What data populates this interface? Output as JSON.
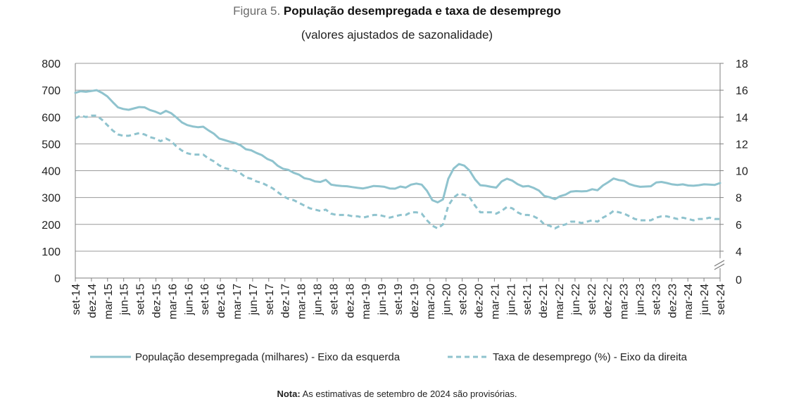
{
  "title": {
    "prefix": "Figura 5.",
    "main": "População desempregada e taxa de desemprego",
    "subtitle": "(valores ajustados de sazonalidade)"
  },
  "note": {
    "label": "Nota:",
    "text": "As estimativas de setembro de 2024 são provisórias."
  },
  "colors": {
    "series": "#8fc3ce",
    "grid": "#9a9a9a",
    "axis": "#7f7f7f"
  },
  "chart_data": {
    "type": "line",
    "title": "População desempregada e taxa de desemprego",
    "x_tick_labels": [
      "set-14",
      "dez-14",
      "mar-15",
      "jun-15",
      "set-15",
      "dez-15",
      "mar-16",
      "jun-16",
      "set-16",
      "dez-16",
      "mar-17",
      "jun-17",
      "set-17",
      "dez-17",
      "mar-18",
      "jun-18",
      "set-18",
      "dez-18",
      "mar-19",
      "jun-19",
      "set-19",
      "dez-19",
      "mar-20",
      "jun-20",
      "set-20",
      "dez-20",
      "mar-21",
      "jun-21",
      "set-21",
      "dez-21",
      "mar-22",
      "jun-22",
      "set-22",
      "dez-22",
      "mar-23",
      "jun-23",
      "set-23",
      "dez-23",
      "mar-24",
      "jun-24",
      "set-24"
    ],
    "y_left": {
      "ticks": [
        0,
        100,
        200,
        300,
        400,
        500,
        600,
        700,
        800
      ],
      "ylim": [
        0,
        800
      ]
    },
    "y_right": {
      "ticks": [
        0,
        4,
        6,
        8,
        10,
        12,
        14,
        16,
        18
      ],
      "axis_break": true,
      "ylim_upper": [
        4,
        18
      ]
    },
    "legend_position": "bottom",
    "series": [
      {
        "name": "População desempregada (milhares) - Eixo da esquerda",
        "style": "solid",
        "axis": "left",
        "values": [
          690,
          696,
          694,
          697,
          700,
          690,
          677,
          656,
          636,
          630,
          627,
          632,
          637,
          636,
          626,
          620,
          612,
          623,
          614,
          598,
          580,
          570,
          565,
          562,
          564,
          550,
          538,
          520,
          514,
          508,
          503,
          495,
          480,
          476,
          466,
          458,
          444,
          436,
          418,
          407,
          403,
          392,
          385,
          372,
          368,
          360,
          358,
          366,
          348,
          345,
          343,
          342,
          339,
          336,
          334,
          338,
          343,
          342,
          340,
          334,
          333,
          341,
          337,
          348,
          352,
          348,
          325,
          290,
          282,
          293,
          370,
          408,
          425,
          419,
          400,
          368,
          346,
          344,
          340,
          337,
          360,
          370,
          363,
          350,
          341,
          343,
          336,
          326,
          306,
          301,
          294,
          305,
          311,
          322,
          324,
          323,
          324,
          331,
          327,
          345,
          357,
          371,
          365,
          362,
          350,
          344,
          340,
          341,
          342,
          356,
          358,
          354,
          349,
          347,
          349,
          345,
          344,
          346,
          349,
          348,
          347,
          354
        ],
        "scaled_to_left_axis": false
      },
      {
        "name": "Taxa de desemprego (%) - Eixo da direita",
        "style": "dashed",
        "axis": "right",
        "values": [
          13.9,
          14.1,
          14.0,
          14.1,
          14.1,
          13.8,
          13.4,
          13.0,
          12.7,
          12.6,
          12.6,
          12.7,
          12.8,
          12.7,
          12.5,
          12.4,
          12.2,
          12.4,
          12.2,
          11.8,
          11.5,
          11.3,
          11.2,
          11.2,
          11.2,
          10.9,
          10.7,
          10.4,
          10.2,
          10.1,
          10.0,
          9.8,
          9.5,
          9.4,
          9.2,
          9.1,
          8.9,
          8.7,
          8.4,
          8.1,
          7.9,
          7.8,
          7.6,
          7.4,
          7.2,
          7.1,
          7.0,
          7.1,
          6.8,
          6.7,
          6.7,
          6.7,
          6.6,
          6.6,
          6.5,
          6.6,
          6.7,
          6.7,
          6.6,
          6.5,
          6.6,
          6.7,
          6.7,
          6.9,
          6.9,
          6.8,
          6.3,
          5.9,
          5.7,
          6.0,
          7.4,
          8.0,
          8.3,
          8.2,
          8.0,
          7.4,
          6.9,
          6.9,
          6.9,
          6.8,
          7.0,
          7.3,
          7.2,
          6.9,
          6.7,
          6.7,
          6.6,
          6.4,
          6.0,
          5.9,
          5.7,
          5.9,
          6.0,
          6.2,
          6.2,
          6.1,
          6.2,
          6.3,
          6.2,
          6.5,
          6.7,
          7.0,
          6.9,
          6.8,
          6.6,
          6.4,
          6.3,
          6.3,
          6.3,
          6.5,
          6.6,
          6.6,
          6.5,
          6.4,
          6.5,
          6.4,
          6.3,
          6.4,
          6.4,
          6.5,
          6.4,
          6.4
        ]
      }
    ]
  }
}
